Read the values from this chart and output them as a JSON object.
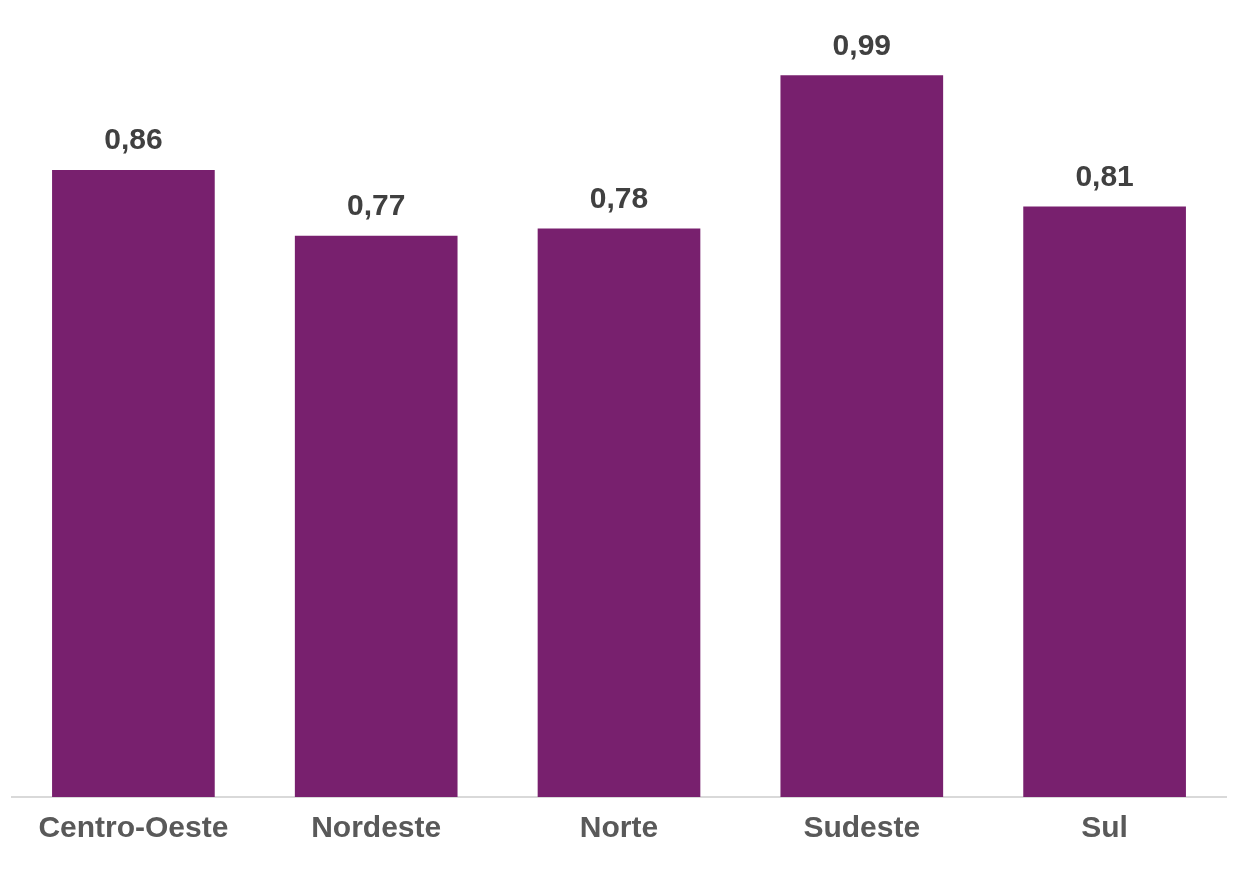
{
  "chart_data": {
    "type": "bar",
    "categories": [
      "Centro-Oeste",
      "Nordeste",
      "Norte",
      "Sudeste",
      "Sul"
    ],
    "values": [
      0.86,
      0.77,
      0.78,
      0.99,
      0.81
    ],
    "value_labels": [
      "0,86",
      "0,77",
      "0,78",
      "0,99",
      "0,81"
    ],
    "color": "#78206e",
    "grid": false,
    "legend": false
  }
}
